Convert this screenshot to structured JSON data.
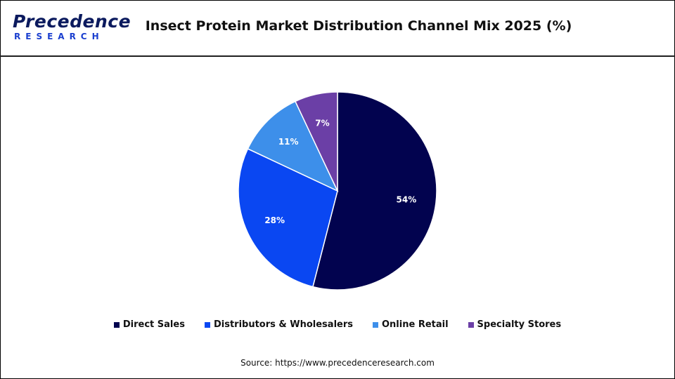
{
  "logo": {
    "word": "Precedence",
    "sub": "RESEARCH"
  },
  "title": "Insect Protein Market Distribution Channel Mix 2025 (%)",
  "source": "Source: https://www.precedenceresearch.com",
  "chart_data": {
    "type": "pie",
    "title": "Insect Protein Market Distribution Channel Mix 2025 (%)",
    "categories": [
      "Direct Sales",
      "Distributors & Wholesalers",
      "Online Retail",
      "Specialty Stores"
    ],
    "values": [
      54,
      28,
      11,
      7
    ],
    "labels": [
      "54%",
      "28%",
      "11%",
      "7%"
    ],
    "colors": [
      "#02034f",
      "#0a47f2",
      "#3d8fea",
      "#6b3fa6"
    ],
    "start": "12 o'clock",
    "direction": "clockwise",
    "legend": "bottom"
  }
}
